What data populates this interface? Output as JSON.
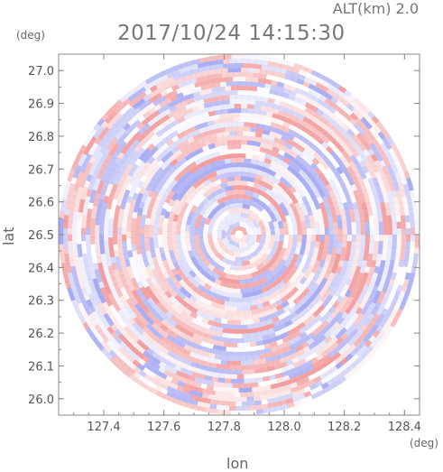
{
  "header": {
    "altitude_label": "ALT(km) 2.0",
    "timestamp": "2017/10/24 14:15:30"
  },
  "chart_data": {
    "type": "heatmap",
    "title": "2017/10/24 14:15:30",
    "xlabel": "lon",
    "ylabel": "lat",
    "x_unit": "(deg)",
    "y_unit": "(deg)",
    "xlim": [
      127.25,
      128.45
    ],
    "ylim": [
      25.95,
      27.05
    ],
    "x_ticks": [
      "127.4",
      "127.6",
      "127.8",
      "128.0",
      "128.2",
      "128.4"
    ],
    "y_ticks": [
      "26.0",
      "26.1",
      "26.2",
      "26.3",
      "26.4",
      "26.5",
      "26.6",
      "26.7",
      "26.8",
      "26.9",
      "27.0"
    ],
    "radar_center": {
      "lon": 127.85,
      "lat": 26.5
    },
    "radar_range_deg": {
      "lon": 0.62,
      "lat": 0.55
    },
    "grid": false,
    "colors": {
      "positive": "#f4b1b1",
      "negative": "#b3b8f2",
      "zero": "#ffffff",
      "axis": "#888888"
    }
  }
}
